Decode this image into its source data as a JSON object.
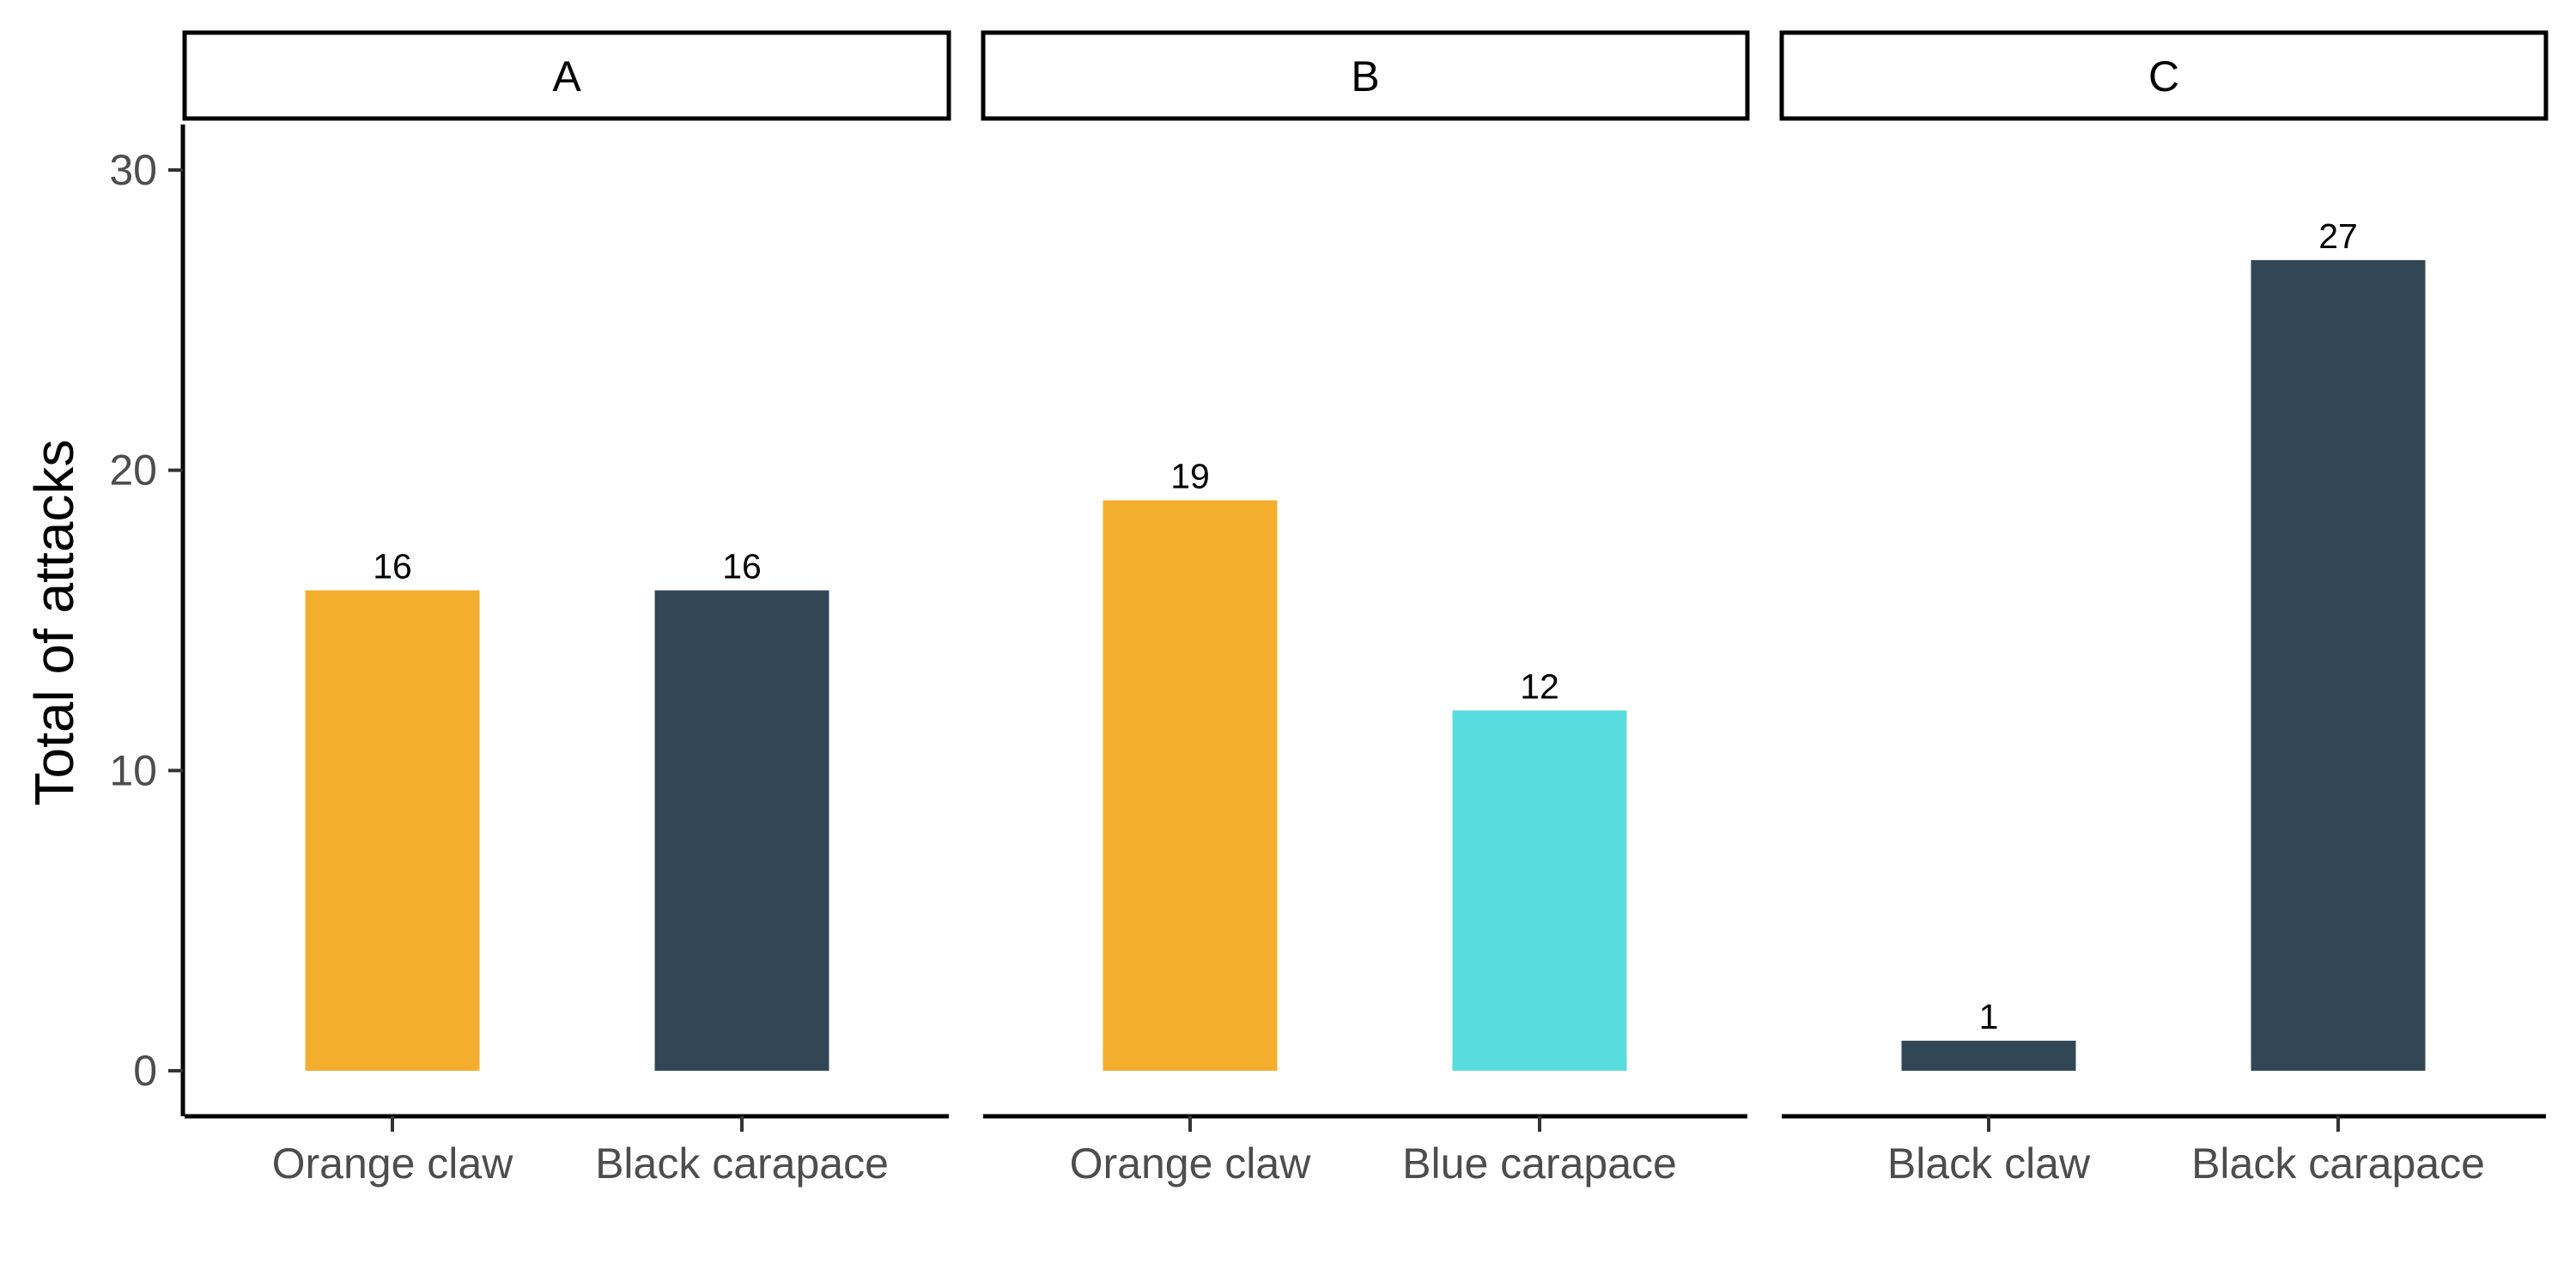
{
  "chart_data": {
    "type": "bar",
    "layout": "facet",
    "ylabel": "Total of attacks",
    "xlabel": "",
    "ylim": [
      0,
      30
    ],
    "yticks": [
      0,
      10,
      20,
      30
    ],
    "grid": false,
    "legend": "none",
    "colors": {
      "orange": "#F4AE2E",
      "dark": "#314756",
      "cyan": "#58DCDE"
    },
    "panels": [
      {
        "label": "A",
        "bars": [
          {
            "category": "Orange claw",
            "value": 16,
            "color": "#F4AE2E"
          },
          {
            "category": "Black carapace",
            "value": 16,
            "color": "#314756"
          }
        ]
      },
      {
        "label": "B",
        "bars": [
          {
            "category": "Orange claw",
            "value": 19,
            "color": "#F4AE2E"
          },
          {
            "category": "Blue carapace",
            "value": 12,
            "color": "#58DCDE"
          }
        ]
      },
      {
        "label": "C",
        "bars": [
          {
            "category": "Black claw",
            "value": 1,
            "color": "#314756"
          },
          {
            "category": "Black carapace",
            "value": 27,
            "color": "#314756"
          }
        ]
      }
    ]
  }
}
